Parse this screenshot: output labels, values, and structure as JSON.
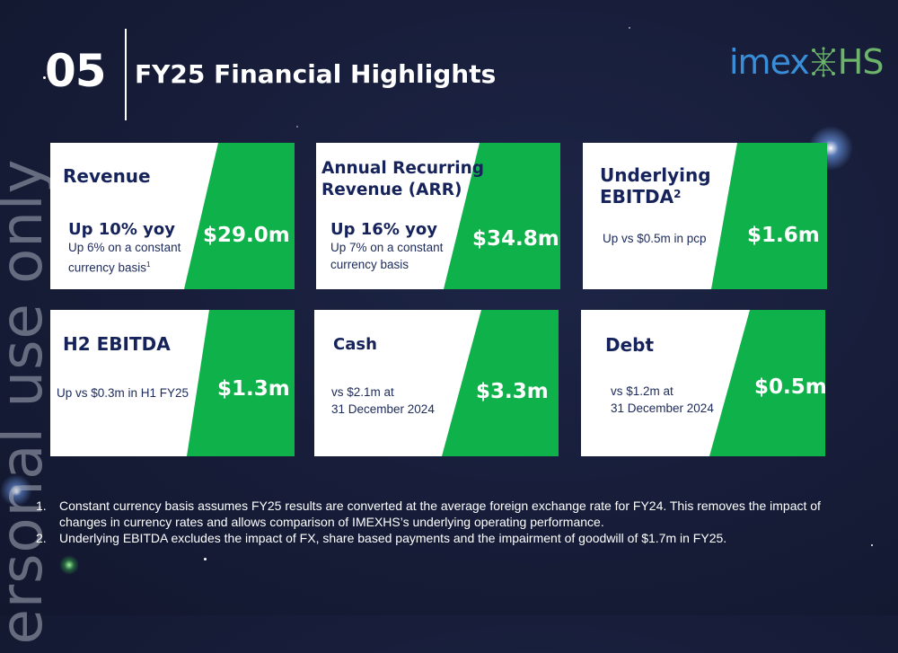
{
  "watermark": "ersonal use only",
  "header": {
    "section_number": "05",
    "title": "FY25 Financial Highlights"
  },
  "logo": {
    "part1": "imex",
    "part2": "HS"
  },
  "cards": [
    {
      "title": "Revenue",
      "headline": "Up 10% yoy",
      "sub_line1": "Up 6% on a constant",
      "sub_line2": "currency basis",
      "sub_sup": "1",
      "value": "$29.0m"
    },
    {
      "title_line1": "Annual Recurring",
      "title_line2": "Revenue (ARR)",
      "headline": "Up 16% yoy",
      "sub_line1": "Up 7% on a constant",
      "sub_line2": "currency basis",
      "value": "$34.8m"
    },
    {
      "title_line1": "Underlying",
      "title_line2": "EBITDA",
      "title_sup": "2",
      "sub_line1": "Up vs $0.5m in pcp",
      "value": "$1.6m"
    },
    {
      "title": "H2 EBITDA",
      "sub_line1": "Up vs $0.3m in H1 FY25",
      "value": "$1.3m"
    },
    {
      "title": "Cash",
      "sub_line1": "vs $2.1m at",
      "sub_line2": "31 December 2024",
      "value": "$3.3m"
    },
    {
      "title": "Debt",
      "sub_line1": "vs $1.2m at",
      "sub_line2": "31 December 2024",
      "value": "$0.5m"
    }
  ],
  "footnotes": [
    {
      "num": "1.",
      "text": "Constant currency basis assumes FY25 results are converted at the average foreign exchange rate for FY24. This removes the impact of changes in currency rates and allows comparison of IMEXHS’s underlying operating performance."
    },
    {
      "num": "2.",
      "text": "Underlying EBITDA excludes the impact of FX, share based payments and the impairment of goodwill of $1.7m in FY25."
    }
  ]
}
